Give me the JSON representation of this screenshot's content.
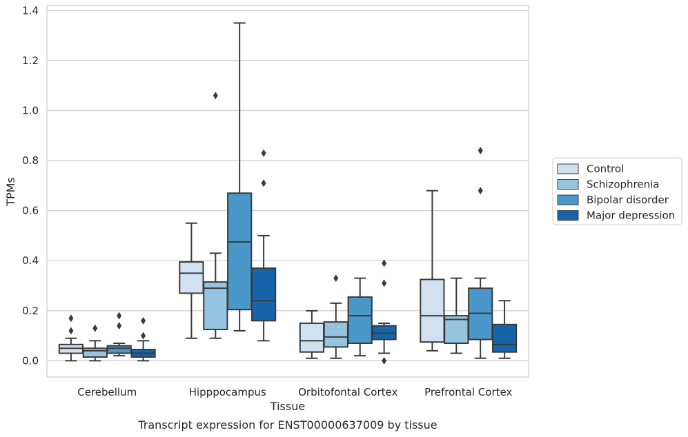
{
  "chart_data": {
    "type": "box",
    "xlabel": "Tissue",
    "ylabel": "TPMs",
    "caption": "Transcript expression for ENST00000637009 by tissue",
    "ylim": [
      -0.065,
      1.42
    ],
    "yticks": [
      0.0,
      0.2,
      0.4,
      0.6,
      0.8,
      1.0,
      1.2,
      1.4
    ],
    "ytick_labels": [
      "0.0",
      "0.2",
      "0.4",
      "0.6",
      "0.8",
      "1.0",
      "1.2",
      "1.4"
    ],
    "grid": "horizontal",
    "legend_position": "right",
    "categories": [
      "Cerebellum",
      "Hipppocampus",
      "Orbitofontal Cortex",
      "Prefrontal Cortex"
    ],
    "series": [
      {
        "name": "Control",
        "color": "#d0e1f2",
        "boxes": [
          {
            "whisker_low": 0.0,
            "q1": 0.03,
            "median": 0.05,
            "q3": 0.065,
            "whisker_high": 0.09,
            "outliers": [
              0.12,
              0.17
            ]
          },
          {
            "whisker_low": 0.09,
            "q1": 0.27,
            "median": 0.35,
            "q3": 0.395,
            "whisker_high": 0.55,
            "outliers": []
          },
          {
            "whisker_low": 0.01,
            "q1": 0.035,
            "median": 0.08,
            "q3": 0.15,
            "whisker_high": 0.2,
            "outliers": []
          },
          {
            "whisker_low": 0.04,
            "q1": 0.075,
            "median": 0.18,
            "q3": 0.325,
            "whisker_high": 0.68,
            "outliers": []
          }
        ]
      },
      {
        "name": "Schizophrenia",
        "color": "#94c4df",
        "boxes": [
          {
            "whisker_low": 0.0,
            "q1": 0.015,
            "median": 0.04,
            "q3": 0.05,
            "whisker_high": 0.08,
            "outliers": [
              0.13
            ]
          },
          {
            "whisker_low": 0.09,
            "q1": 0.125,
            "median": 0.29,
            "q3": 0.315,
            "whisker_high": 0.43,
            "outliers": [
              1.06
            ]
          },
          {
            "whisker_low": 0.01,
            "q1": 0.055,
            "median": 0.095,
            "q3": 0.155,
            "whisker_high": 0.23,
            "outliers": [
              0.33
            ]
          },
          {
            "whisker_low": 0.03,
            "q1": 0.07,
            "median": 0.165,
            "q3": 0.18,
            "whisker_high": 0.33,
            "outliers": []
          }
        ]
      },
      {
        "name": "Bipolar disorder",
        "color": "#4a98c9",
        "boxes": [
          {
            "whisker_low": 0.02,
            "q1": 0.03,
            "median": 0.05,
            "q3": 0.06,
            "whisker_high": 0.07,
            "outliers": [
              0.14,
              0.18
            ]
          },
          {
            "whisker_low": 0.12,
            "q1": 0.205,
            "median": 0.475,
            "q3": 0.67,
            "whisker_high": 1.35,
            "outliers": []
          },
          {
            "whisker_low": 0.02,
            "q1": 0.07,
            "median": 0.18,
            "q3": 0.255,
            "whisker_high": 0.33,
            "outliers": []
          },
          {
            "whisker_low": 0.01,
            "q1": 0.085,
            "median": 0.19,
            "q3": 0.29,
            "whisker_high": 0.33,
            "outliers": [
              0.68,
              0.84
            ]
          }
        ]
      },
      {
        "name": "Major depression",
        "color": "#1764ab",
        "boxes": [
          {
            "whisker_low": 0.0,
            "q1": 0.015,
            "median": 0.03,
            "q3": 0.045,
            "whisker_high": 0.08,
            "outliers": [
              0.1,
              0.16
            ]
          },
          {
            "whisker_low": 0.08,
            "q1": 0.16,
            "median": 0.24,
            "q3": 0.37,
            "whisker_high": 0.5,
            "outliers": [
              0.71,
              0.83
            ]
          },
          {
            "whisker_low": 0.03,
            "q1": 0.085,
            "median": 0.11,
            "q3": 0.14,
            "whisker_high": 0.15,
            "outliers": [
              0.0,
              0.31,
              0.39
            ]
          },
          {
            "whisker_low": 0.01,
            "q1": 0.035,
            "median": 0.065,
            "q3": 0.145,
            "whisker_high": 0.24,
            "outliers": []
          }
        ]
      }
    ]
  }
}
